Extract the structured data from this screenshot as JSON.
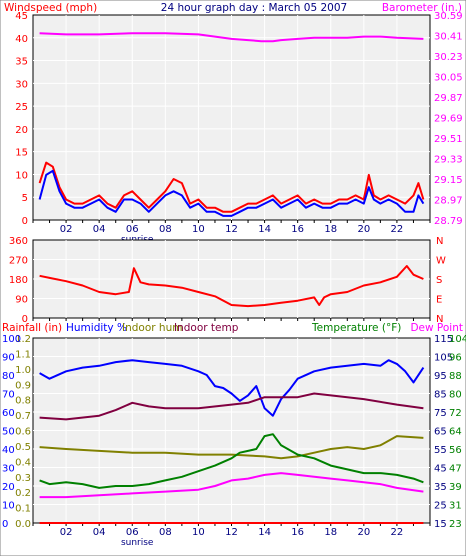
{
  "colors": {
    "bg": "#ffffff",
    "plot_bg": "#f0f0f0",
    "grid": "#ffffff",
    "red": "#ff0000",
    "blue": "#0000ff",
    "magenta": "#ff00ff",
    "olive": "#808000",
    "maroon": "#800040",
    "green": "#008000",
    "darkblue": "#000080",
    "tick_dark": "#000080"
  },
  "chart_data": [
    {
      "type": "line",
      "title": "24 hour graph day : March 05 2007",
      "left_label": "Windspeed (mph)",
      "right_label": "Barometer (in.)",
      "left_ticks": [
        "45",
        "40",
        "35",
        "30",
        "25",
        "20",
        "15",
        "10",
        "5",
        "0"
      ],
      "right_ticks": [
        "30.59",
        "30.41",
        "30.23",
        "30.05",
        "29.87",
        "29.69",
        "29.51",
        "29.33",
        "29.15",
        "28.97",
        "28.79"
      ],
      "x_ticks": [
        "02",
        "04",
        "06",
        "08",
        "10",
        "12",
        "14",
        "16",
        "18",
        "20",
        "22"
      ],
      "x_annotation": "sunrise",
      "x_annotation_at": 6.3,
      "xlim": [
        0,
        24
      ],
      "ylim_left": [
        0,
        50
      ],
      "ylim_right": [
        28.79,
        30.59
      ],
      "series": [
        {
          "axis": "right",
          "color": "magenta",
          "x": [
            0.4,
            2,
            4,
            6,
            8,
            10,
            11,
            12,
            13,
            13.8,
            14.5,
            15,
            16,
            17,
            18,
            19,
            20,
            21,
            22,
            23.6
          ],
          "y": [
            30.43,
            30.42,
            30.42,
            30.43,
            30.43,
            30.42,
            30.4,
            30.38,
            30.37,
            30.36,
            30.36,
            30.37,
            30.38,
            30.39,
            30.39,
            30.39,
            30.4,
            30.4,
            30.39,
            30.38
          ]
        },
        {
          "axis": "left",
          "color": "red",
          "x": [
            0.4,
            0.8,
            1.2,
            1.6,
            2,
            2.5,
            3,
            3.5,
            4,
            4.5,
            5,
            5.5,
            6,
            6.5,
            7,
            7.5,
            8,
            8.5,
            9,
            9.5,
            10,
            10.5,
            11,
            11.5,
            12,
            12.5,
            13,
            13.5,
            14,
            14.5,
            15,
            15.5,
            16,
            16.5,
            17,
            17.5,
            18,
            18.5,
            19,
            19.5,
            20,
            20.3,
            20.6,
            21,
            21.5,
            22,
            22.5,
            23,
            23.3,
            23.6
          ],
          "y": [
            9,
            14,
            13,
            8,
            5,
            4,
            4,
            5,
            6,
            4,
            3,
            6,
            7,
            5,
            3,
            5,
            7,
            10,
            9,
            4,
            5,
            3,
            3,
            2,
            2,
            3,
            4,
            4,
            5,
            6,
            4,
            5,
            6,
            4,
            5,
            4,
            4,
            5,
            5,
            6,
            5,
            11,
            6,
            5,
            6,
            5,
            4,
            6,
            9,
            5
          ]
        },
        {
          "axis": "left",
          "color": "blue",
          "x": [
            0.4,
            0.8,
            1.2,
            1.6,
            2,
            2.5,
            3,
            3.5,
            4,
            4.5,
            5,
            5.5,
            6,
            6.5,
            7,
            7.5,
            8,
            8.5,
            9,
            9.5,
            10,
            10.5,
            11,
            11.5,
            12,
            12.5,
            13,
            13.5,
            14,
            14.5,
            15,
            15.5,
            16,
            16.5,
            17,
            17.5,
            18,
            18.5,
            19,
            19.5,
            20,
            20.3,
            20.6,
            21,
            21.5,
            22,
            22.5,
            23,
            23.3,
            23.6
          ],
          "y": [
            5,
            11,
            12,
            7,
            4,
            3,
            3,
            4,
            5,
            3,
            2,
            5,
            5,
            4,
            2,
            4,
            6,
            7,
            6,
            3,
            4,
            2,
            2,
            1,
            1,
            2,
            3,
            3,
            4,
            5,
            3,
            4,
            5,
            3,
            4,
            3,
            3,
            4,
            4,
            5,
            4,
            8,
            5,
            4,
            5,
            4,
            2,
            2,
            6,
            4
          ]
        }
      ]
    },
    {
      "type": "line",
      "title": "",
      "left_ticks": [
        "360",
        "270",
        "180",
        "90",
        "0"
      ],
      "right_ticks": [
        "N",
        "W",
        "S",
        "E",
        "N"
      ],
      "xlim": [
        0,
        24
      ],
      "ylim_left": [
        0,
        360
      ],
      "series": [
        {
          "axis": "left",
          "color": "red",
          "x": [
            0.4,
            1,
            2,
            3,
            4,
            5,
            5.8,
            6.1,
            6.5,
            7,
            8,
            9,
            10,
            11,
            12,
            13,
            14,
            15,
            16,
            17,
            17.3,
            17.6,
            18,
            19,
            20,
            21,
            22,
            22.6,
            23,
            23.6
          ],
          "y": [
            195,
            185,
            170,
            150,
            120,
            110,
            120,
            230,
            165,
            155,
            150,
            140,
            120,
            100,
            60,
            55,
            60,
            70,
            80,
            95,
            60,
            95,
            110,
            120,
            150,
            165,
            190,
            240,
            200,
            180
          ]
        }
      ]
    },
    {
      "type": "line",
      "title": "",
      "labels_left": [
        "Rainfall (in)",
        "Humidity %",
        "Indoor hum",
        "Indoor temp"
      ],
      "labels_right": [
        "Temperature (°F)",
        "Dew Point"
      ],
      "rain_ticks": [
        "1.2",
        "1.1",
        "1.0",
        "0.9",
        "0.8",
        "0.7",
        "0.6",
        "0.5",
        "0.4",
        "0.3",
        "0.2",
        "0.1",
        "0.0"
      ],
      "humidity_ticks": [
        "100",
        "90",
        "80",
        "70",
        "60",
        "50",
        "40",
        "30",
        "20",
        "10",
        "0"
      ],
      "temp_ticks": [
        "115",
        "104",
        "105",
        "96",
        "95",
        "88",
        "85",
        "80",
        "75",
        "72",
        "65",
        "64",
        "55",
        "56",
        "45",
        "47",
        "35",
        "39",
        "25",
        "31",
        "15",
        "23"
      ],
      "x_ticks": [
        "02",
        "04",
        "06",
        "08",
        "10",
        "12",
        "14",
        "16",
        "18",
        "20",
        "22"
      ],
      "x_annotation": "sunrise",
      "x_annotation_at": 6.3,
      "xlim": [
        0,
        24
      ],
      "ylim_left": [
        0,
        100
      ],
      "series": [
        {
          "name": "Humidity %",
          "color": "blue",
          "x": [
            0.4,
            1,
            2,
            3,
            4,
            5,
            6,
            7,
            8,
            9,
            10,
            10.5,
            11,
            11.5,
            12,
            12.5,
            13,
            13.5,
            14,
            14.5,
            15,
            15.5,
            16,
            17,
            18,
            19,
            20,
            21,
            21.5,
            22,
            22.5,
            23,
            23.6
          ],
          "y": [
            81,
            78,
            82,
            84,
            85,
            87,
            88,
            87,
            86,
            85,
            82,
            80,
            74,
            73,
            70,
            66,
            69,
            74,
            62,
            58,
            67,
            72,
            78,
            82,
            84,
            85,
            86,
            85,
            88,
            86,
            82,
            76,
            84
          ]
        },
        {
          "name": "Indoor temp",
          "color": "maroon",
          "x": [
            0.4,
            2,
            4,
            5,
            6,
            7,
            8,
            10,
            12,
            13,
            14,
            15,
            16,
            17,
            18,
            20,
            22,
            23.6
          ],
          "y": [
            57,
            56,
            58,
            61,
            65,
            63,
            62,
            62,
            64,
            65,
            68,
            68,
            68,
            70,
            69,
            67,
            64,
            62
          ]
        },
        {
          "name": "Indoor hum",
          "color": "olive",
          "x": [
            0.4,
            2,
            4,
            6,
            8,
            10,
            12,
            14,
            15,
            16,
            17,
            18,
            19,
            20,
            21,
            22,
            23.6
          ],
          "y": [
            41,
            40,
            39,
            38,
            38,
            37,
            37,
            36,
            35,
            36,
            38,
            40,
            41,
            40,
            42,
            47,
            46
          ]
        },
        {
          "name": "Temperature (°F)",
          "color": "green",
          "x": [
            0.4,
            1,
            2,
            3,
            4,
            5,
            6,
            7,
            8,
            9,
            10,
            11,
            12,
            12.5,
            13,
            13.5,
            14,
            14.5,
            15,
            16,
            17,
            18,
            19,
            20,
            21,
            22,
            23,
            23.6
          ],
          "y": [
            23,
            21,
            22,
            21,
            19,
            20,
            20,
            21,
            23,
            25,
            28,
            31,
            35,
            38,
            39,
            40,
            47,
            48,
            42,
            37,
            35,
            31,
            29,
            27,
            27,
            26,
            24,
            22
          ]
        },
        {
          "name": "Dew Point",
          "color": "magenta",
          "x": [
            0.4,
            2,
            4,
            6,
            8,
            10,
            11,
            12,
            13,
            14,
            15,
            16,
            17,
            18,
            19,
            20,
            21,
            22,
            23.6
          ],
          "y": [
            14,
            14,
            15,
            16,
            17,
            18,
            20,
            23,
            24,
            26,
            27,
            26,
            25,
            24,
            23,
            22,
            21,
            19,
            17
          ]
        },
        {
          "name": "Rainfall (in)",
          "color": "red",
          "x": [
            0.4,
            23.6
          ],
          "y": [
            0,
            0
          ]
        }
      ]
    }
  ]
}
